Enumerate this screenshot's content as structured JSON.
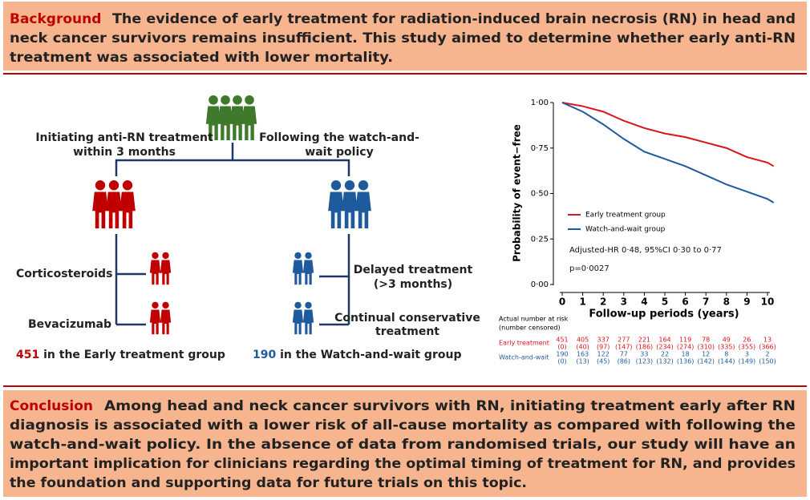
{
  "background": {
    "label": "Background",
    "lines": [
      "The evidence of early treatment for radiation-induced brain necrosis (RN) in head and",
      "neck cancer survivors remains insufficient. This study aimed to determine whether early anti-RN",
      "treatment was associated with lower mortality."
    ]
  },
  "flow": {
    "early_branch": [
      "Initiating anti-RN treatment",
      "within 3 months"
    ],
    "watch_branch": [
      "Following the watch-and-",
      "wait policy"
    ],
    "early_treatments": [
      "Corticosteroids",
      "Bevacizumab"
    ],
    "watch_treatments": [
      [
        "Delayed treatment",
        "(>3 months)"
      ],
      [
        "Continual conservative",
        "treatment"
      ]
    ],
    "early_count": {
      "number": "451",
      "text": "in the Early treatment group"
    },
    "watch_count": {
      "number": "190",
      "text": "in the Watch-and-wait group"
    }
  },
  "chart_data": {
    "type": "line",
    "x_label": "Follow-up periods (years)",
    "y_label": "Probability of event−free",
    "x": [
      0,
      1,
      2,
      3,
      4,
      5,
      6,
      7,
      8,
      9,
      10,
      10.3
    ],
    "series": [
      {
        "name": "Early treatment group",
        "color": "#d9141c",
        "values": [
          1.0,
          0.98,
          0.95,
          0.9,
          0.86,
          0.83,
          0.81,
          0.78,
          0.75,
          0.7,
          0.67,
          0.65
        ]
      },
      {
        "name": "Watch-and-wait group",
        "color": "#1f5a9c",
        "values": [
          1.0,
          0.95,
          0.88,
          0.8,
          0.73,
          0.69,
          0.65,
          0.6,
          0.55,
          0.51,
          0.47,
          0.45
        ]
      }
    ],
    "xlim": [
      0,
      10
    ],
    "ylim": [
      0,
      1
    ],
    "xticks": [
      0,
      1,
      2,
      3,
      4,
      5,
      6,
      7,
      8,
      9,
      10
    ],
    "yticks": [
      {
        "value": 0,
        "label": "0·00"
      },
      {
        "value": 0.25,
        "label": "0·25"
      },
      {
        "value": 0.5,
        "label": "0·50"
      },
      {
        "value": 0.75,
        "label": "0·75"
      },
      {
        "value": 1,
        "label": "1·00"
      }
    ],
    "annotations": [
      "Adjusted-HR 0·48, 95%CI 0·30 to 0·77",
      "p=0·0027"
    ],
    "risk_table": {
      "title": [
        "Actual number at risk",
        "(number censored)"
      ],
      "rows": [
        {
          "name": "Early treatment",
          "at_risk": [
            451,
            405,
            337,
            277,
            221,
            164,
            119,
            78,
            49,
            26,
            13
          ],
          "censored": [
            "(0)",
            "(40)",
            "(97)",
            "(147)",
            "(186)",
            "(234)",
            "(274)",
            "(310)",
            "(335)",
            "(355)",
            "(366)"
          ]
        },
        {
          "name": "Watch-and-wait",
          "at_risk": [
            190,
            163,
            122,
            77,
            33,
            22,
            18,
            12,
            8,
            3,
            2
          ],
          "censored": [
            "(0)",
            "(13)",
            "(45)",
            "(86)",
            "(123)",
            "(132)",
            "(136)",
            "(142)",
            "(144)",
            "(149)",
            "(150)"
          ]
        }
      ]
    }
  },
  "conclusion": {
    "label": "Conclusion",
    "lines": [
      "Among head and neck cancer survivors with RN, initiating treatment early after RN",
      "diagnosis is associated with a lower risk of all-cause mortality as compared with following the",
      "watch-and-wait policy. In the absence of data from randomised trials, our study will have an",
      "important implication for clinicians regarding the optimal timing of treatment for RN, and provides",
      "the foundation and supporting data for future trials on this topic."
    ]
  }
}
